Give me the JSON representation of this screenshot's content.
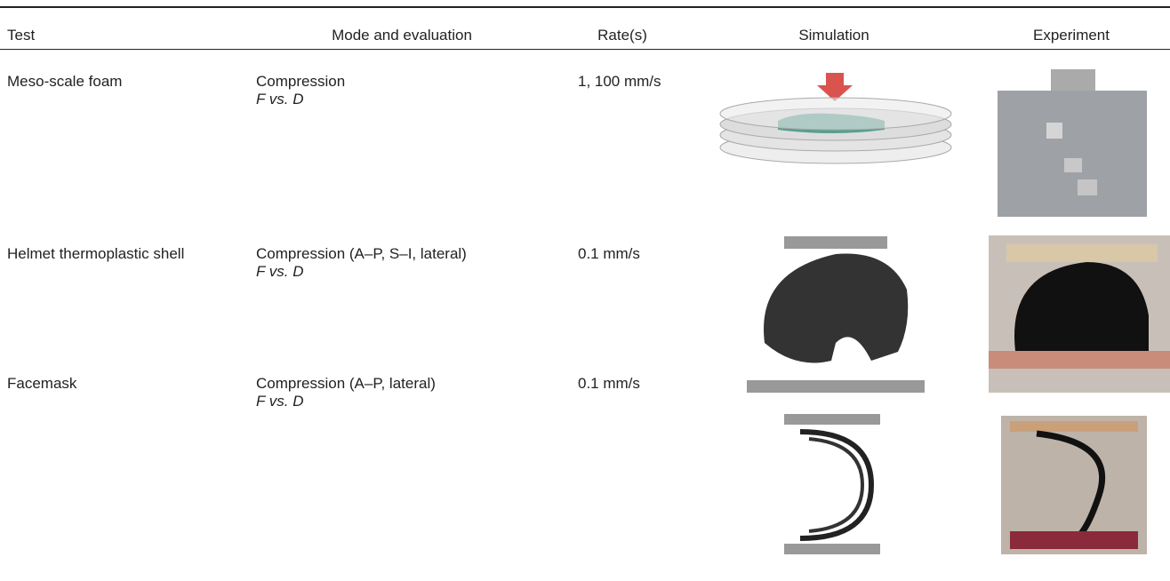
{
  "table": {
    "header": [
      "Test",
      "Mode and evaluation",
      "Rate(s)",
      "Simulation",
      "Experiment"
    ],
    "rows": [
      {
        "test": "Meso-scale foam",
        "mode": "Compression",
        "evaluation": "F vs. D",
        "rate": "1, 100 mm/s"
      },
      {
        "test": "Helmet thermoplastic shell",
        "mode": "Compression (A–P, S–I, lateral)",
        "evaluation": "F vs. D",
        "rate": "0.1 mm/s"
      },
      {
        "test": "Facemask",
        "mode": "Compression (A–P, lateral)",
        "evaluation": "F vs. D",
        "rate": "0.1 mm/s"
      }
    ]
  }
}
